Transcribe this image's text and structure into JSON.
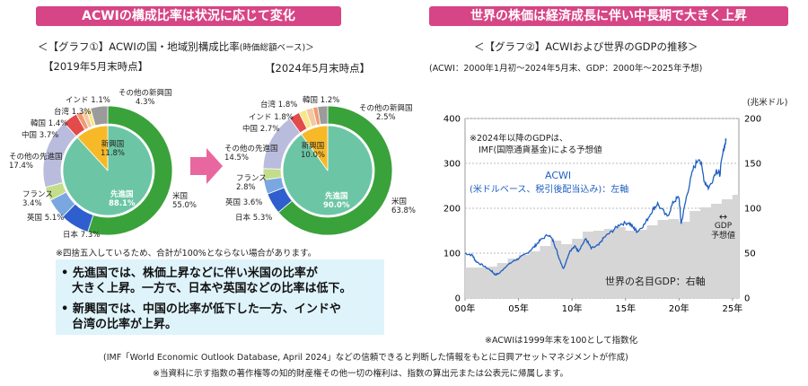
{
  "left": {
    "banner": "ACWIの構成比率は状況に応じて変化",
    "graph_title": "＜【グラフ①】ACWIの国・地域別構成比率",
    "graph_title_suffix": "(時価総額ベース)＞",
    "date_2019": "【2019年5月末時点】",
    "date_2024": "【2024年5月末時点】",
    "rounding_note": "※四捨五入しているため、合計が100%とならない場合があります。",
    "bullets": [
      {
        "marker": "•",
        "line1": "先進国では、株価上昇などに伴い米国の比率が",
        "line2": "大きく上昇。一方で、日本や英国などの比率は低下。"
      },
      {
        "marker": "•",
        "line1": "新興国では、中国の比率が低下した一方、インドや",
        "line2": "台湾の比率が上昇。"
      }
    ]
  },
  "right": {
    "banner": "世界の株価は経済成長に伴い中長期で大きく上昇",
    "graph_title": "＜【グラフ②】ACWIおよび世界のGDPの推移＞",
    "graph_subtitle": "(ACWI：2000年1月初～2024年5月末、GDP：2000年～2025年予想)",
    "right_unit": "(兆米ドル)",
    "gdp_note_line1": "※2024年以降のGDPは、",
    "gdp_note_line2": "IMF(国際通貨基金)による予想値",
    "acwi_label_line1": "ACWI",
    "acwi_label_line2": "(米ドルベース、税引後配当込み)：左軸",
    "gdp_label": "世界の名目GDP：右軸",
    "gdp_forecast_line1": "GDP",
    "gdp_forecast_line2": "予想値",
    "acwi_note": "※ACWIは1999年末を100として指数化"
  },
  "footer": {
    "source": "(IMF「World Economic Outlook Database, April 2024」などの信頼できると判断した情報をもとに日興アセットマネジメントが作成)",
    "rights": "※当資料に示す指数の著作権等の知的財産権その他一切の権利は、指数の算出元または公表元に帰属します。"
  },
  "colors": {
    "banner": "#d64585",
    "us": "#3aa23a",
    "developed_inner": "#6cc6a6",
    "emerging_inner": "#f7b928",
    "japan": "#2f5fcf",
    "uk": "#7aa7e0",
    "france": "#c3dd8a",
    "other_dev": "#b9bcdc",
    "china": "#e34a4a",
    "korea": "#f19a72",
    "taiwan": "#f3c9a2",
    "india": "#f7e68a",
    "other_em": "#9b9b9b",
    "acwi_line": "#1f5fbf",
    "gdp_area": "#d6d6d6"
  },
  "chart_data": [
    {
      "type": "pie",
      "title": "2019年5月末時点",
      "slices": [
        {
          "name": "米国",
          "value": 55.0,
          "label": "米国",
          "pct": "55.0%"
        },
        {
          "name": "日本",
          "value": 7.3,
          "label": "日本",
          "pct": "7.3%"
        },
        {
          "name": "英国",
          "value": 5.1,
          "label": "英国",
          "pct": "5.1%"
        },
        {
          "name": "フランス",
          "value": 3.4,
          "label": "フランス",
          "pct": "3.4%"
        },
        {
          "name": "その他の先進国",
          "value": 17.4,
          "label": "その他の先進国",
          "pct": "17.4%"
        },
        {
          "name": "中国",
          "value": 3.7,
          "label": "中国",
          "pct": "3.7%"
        },
        {
          "name": "韓国",
          "value": 1.4,
          "label": "韓国",
          "pct": "1.4%"
        },
        {
          "name": "台湾",
          "value": 1.3,
          "label": "台湾",
          "pct": "1.3%"
        },
        {
          "name": "インド",
          "value": 1.1,
          "label": "インド",
          "pct": "1.1%"
        },
        {
          "name": "その他の新興国",
          "value": 4.3,
          "label": "その他の新興国",
          "pct": "4.3%"
        }
      ],
      "inner": [
        {
          "name": "先進国",
          "value": 88.1,
          "label": "先進国",
          "pct": "88.1%"
        },
        {
          "name": "新興国",
          "value": 11.8,
          "label": "新興国",
          "pct": "11.8%"
        }
      ]
    },
    {
      "type": "pie",
      "title": "2024年5月末時点",
      "slices": [
        {
          "name": "米国",
          "value": 63.8,
          "label": "米国",
          "pct": "63.8%"
        },
        {
          "name": "日本",
          "value": 5.3,
          "label": "日本",
          "pct": "5.3%"
        },
        {
          "name": "英国",
          "value": 3.6,
          "label": "英国",
          "pct": "3.6%"
        },
        {
          "name": "フランス",
          "value": 2.8,
          "label": "フランス",
          "pct": "2.8%"
        },
        {
          "name": "その他の先進国",
          "value": 14.5,
          "label": "その他の先進国",
          "pct": "14.5%"
        },
        {
          "name": "中国",
          "value": 2.7,
          "label": "中国",
          "pct": "2.7%"
        },
        {
          "name": "インド",
          "value": 1.8,
          "label": "インド",
          "pct": "1.8%"
        },
        {
          "name": "台湾",
          "value": 1.8,
          "label": "台湾",
          "pct": "1.8%"
        },
        {
          "name": "韓国",
          "value": 1.2,
          "label": "韓国",
          "pct": "1.2%"
        },
        {
          "name": "その他の新興国",
          "value": 2.5,
          "label": "その他の新興国",
          "pct": "2.5%"
        }
      ],
      "inner": [
        {
          "name": "先進国",
          "value": 90.0,
          "label": "先進国",
          "pct": "90.0%"
        },
        {
          "name": "新興国",
          "value": 10.0,
          "label": "新興国",
          "pct": "10.0%"
        }
      ]
    },
    {
      "type": "line",
      "title": "ACWIおよび世界のGDPの推移",
      "xlim": [
        2000,
        2025.6
      ],
      "xticks": [
        2000,
        2005,
        2010,
        2015,
        2020,
        2025
      ],
      "xticklabels": [
        "00年",
        "05年",
        "10年",
        "15年",
        "20年",
        "25年"
      ],
      "ylim_left": [
        0,
        400
      ],
      "yticks_left": [
        0,
        100,
        200,
        300,
        400
      ],
      "ylim_right": [
        0,
        200
      ],
      "yticks_right": [
        0,
        50,
        100,
        150,
        200
      ],
      "series": [
        {
          "name": "ACWI",
          "axis": "left",
          "points": [
            [
              2000,
              100
            ],
            [
              2000.7,
              95
            ],
            [
              2001,
              82
            ],
            [
              2001.7,
              72
            ],
            [
              2002.5,
              60
            ],
            [
              2002.8,
              52
            ],
            [
              2003.2,
              55
            ],
            [
              2003.8,
              70
            ],
            [
              2004.5,
              82
            ],
            [
              2005,
              88
            ],
            [
              2005.8,
              100
            ],
            [
              2006.5,
              115
            ],
            [
              2007,
              128
            ],
            [
              2007.8,
              142
            ],
            [
              2008.3,
              125
            ],
            [
              2008.7,
              95
            ],
            [
              2009.2,
              65
            ],
            [
              2009.8,
              105
            ],
            [
              2010.3,
              115
            ],
            [
              2010.6,
              105
            ],
            [
              2011.3,
              132
            ],
            [
              2011.8,
              110
            ],
            [
              2012.5,
              118
            ],
            [
              2013,
              135
            ],
            [
              2013.8,
              150
            ],
            [
              2014.5,
              165
            ],
            [
              2015.3,
              168
            ],
            [
              2015.8,
              155
            ],
            [
              2016.1,
              148
            ],
            [
              2016.8,
              165
            ],
            [
              2017.5,
              195
            ],
            [
              2018,
              210
            ],
            [
              2018.9,
              180
            ],
            [
              2019.5,
              215
            ],
            [
              2020,
              225
            ],
            [
              2020.2,
              165
            ],
            [
              2020.7,
              225
            ],
            [
              2021.3,
              285
            ],
            [
              2021.9,
              315
            ],
            [
              2022.4,
              260
            ],
            [
              2022.8,
              245
            ],
            [
              2023.5,
              285
            ],
            [
              2023.8,
              275
            ],
            [
              2024.2,
              335
            ],
            [
              2024.4,
              350
            ]
          ]
        },
        {
          "name": "世界の名目GDP",
          "axis": "right",
          "type": "area",
          "x": [
            2000,
            2001,
            2002,
            2003,
            2004,
            2005,
            2006,
            2007,
            2008,
            2009,
            2010,
            2011,
            2012,
            2013,
            2014,
            2015,
            2016,
            2017,
            2018,
            2019,
            2020,
            2021,
            2022,
            2023,
            2024,
            2025
          ],
          "values": [
            34,
            34,
            35,
            39,
            44,
            48,
            52,
            58,
            64,
            60,
            66,
            74,
            75,
            77,
            79,
            75,
            76,
            81,
            87,
            88,
            85,
            97,
            101,
            105,
            110,
            115
          ]
        }
      ]
    }
  ]
}
